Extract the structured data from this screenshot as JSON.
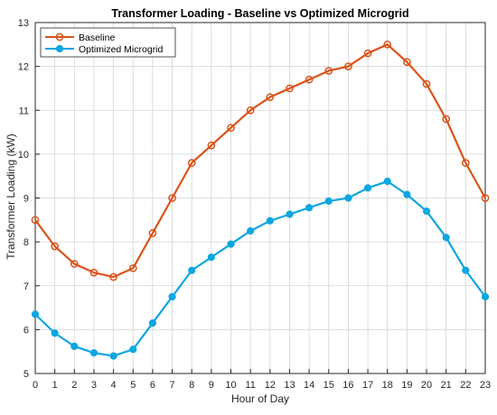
{
  "chart_data": {
    "type": "line",
    "title": "Transformer Loading - Baseline vs Optimized Microgrid",
    "xlabel": "Hour of Day",
    "ylabel": "Transformer Loading (kW)",
    "x": [
      0,
      1,
      2,
      3,
      4,
      5,
      6,
      7,
      8,
      9,
      10,
      11,
      12,
      13,
      14,
      15,
      16,
      17,
      18,
      19,
      20,
      21,
      22,
      23
    ],
    "xlim": [
      0,
      23
    ],
    "ylim": [
      5,
      13
    ],
    "yticks": [
      5,
      6,
      7,
      8,
      9,
      10,
      11,
      12,
      13
    ],
    "grid": true,
    "legend_position": "top-left",
    "series": [
      {
        "name": "Baseline",
        "color": "#D95319",
        "marker": "circle",
        "values": [
          8.5,
          7.9,
          7.5,
          7.3,
          7.2,
          7.4,
          8.2,
          9.0,
          9.8,
          10.2,
          10.6,
          11.0,
          11.3,
          11.5,
          11.7,
          11.9,
          12.0,
          12.3,
          12.5,
          12.1,
          11.6,
          10.8,
          9.8,
          9.0
        ]
      },
      {
        "name": "Optimized Microgrid",
        "color": "#0CA6E0",
        "marker": "filled-circle",
        "values": [
          6.35,
          5.92,
          5.62,
          5.47,
          5.4,
          5.55,
          6.15,
          6.75,
          7.35,
          7.65,
          7.95,
          8.25,
          8.48,
          8.63,
          8.78,
          8.93,
          9.0,
          9.23,
          9.38,
          9.08,
          8.7,
          8.1,
          7.35,
          6.75
        ]
      }
    ]
  }
}
